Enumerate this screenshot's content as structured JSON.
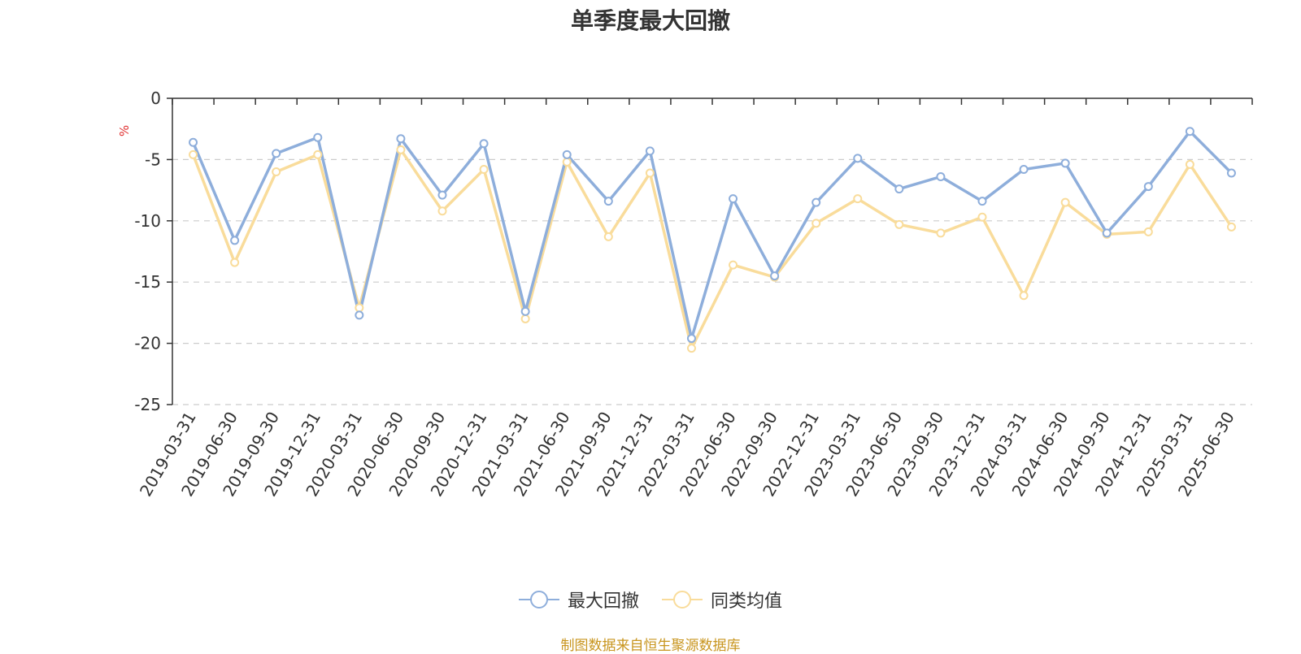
{
  "chart_data": {
    "type": "line",
    "title": "单季度最大回撤",
    "ylabel": "%",
    "ylim": [
      -25,
      0
    ],
    "yticks": [
      0,
      -5,
      -10,
      -15,
      -20,
      -25
    ],
    "grid": true,
    "legend_position": "bottom",
    "categories": [
      "2019-03-31",
      "2019-06-30",
      "2019-09-30",
      "2019-12-31",
      "2020-03-31",
      "2020-06-30",
      "2020-09-30",
      "2020-12-31",
      "2021-03-31",
      "2021-06-30",
      "2021-09-30",
      "2021-12-31",
      "2022-03-31",
      "2022-06-30",
      "2022-09-30",
      "2022-12-31",
      "2023-03-31",
      "2023-06-30",
      "2023-09-30",
      "2023-12-31",
      "2024-03-31",
      "2024-06-30",
      "2024-09-30",
      "2024-12-31",
      "2025-03-31",
      "2025-06-30"
    ],
    "series": [
      {
        "name": "最大回撤",
        "color": "#8eaedb",
        "values": [
          -3.6,
          -11.6,
          -4.5,
          -3.2,
          -17.7,
          -3.3,
          -7.9,
          -3.7,
          -17.4,
          -4.6,
          -8.4,
          -4.3,
          -19.6,
          -8.2,
          -14.5,
          -8.5,
          -4.9,
          -7.4,
          -6.4,
          -8.4,
          -5.8,
          -5.3,
          -11.0,
          -7.2,
          -2.7,
          -6.1
        ]
      },
      {
        "name": "同类均值",
        "color": "#f9dc9b",
        "values": [
          -4.6,
          -13.4,
          -6.0,
          -4.6,
          -17.1,
          -4.2,
          -9.2,
          -5.8,
          -18.0,
          -5.2,
          -11.3,
          -6.1,
          -20.4,
          -13.6,
          -14.6,
          -10.2,
          -8.2,
          -10.3,
          -11.0,
          -9.7,
          -16.1,
          -8.5,
          -11.1,
          -10.9,
          -5.4,
          -10.5
        ]
      }
    ]
  },
  "footer": {
    "source": "制图数据来自恒生聚源数据库"
  }
}
